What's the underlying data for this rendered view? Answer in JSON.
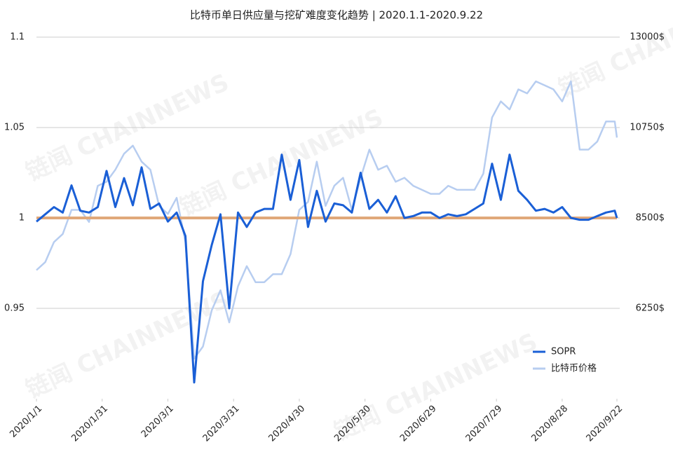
{
  "chart_data": {
    "type": "line",
    "title": "比特币单日供应量与挖矿难度变化趋势 | 2020.1.1-2020.9.22",
    "watermark": "链闻 CHAINNEWS",
    "x": [
      "2020/1/1",
      "2020/1/5",
      "2020/1/9",
      "2020/1/13",
      "2020/1/17",
      "2020/1/21",
      "2020/1/25",
      "2020/1/29",
      "2020/2/2",
      "2020/2/6",
      "2020/2/10",
      "2020/2/14",
      "2020/2/18",
      "2020/2/22",
      "2020/2/26",
      "2020/3/1",
      "2020/3/5",
      "2020/3/9",
      "2020/3/13",
      "2020/3/17",
      "2020/3/21",
      "2020/3/25",
      "2020/3/29",
      "2020/4/2",
      "2020/4/6",
      "2020/4/10",
      "2020/4/14",
      "2020/4/18",
      "2020/4/22",
      "2020/4/26",
      "2020/4/30",
      "2020/5/4",
      "2020/5/8",
      "2020/5/12",
      "2020/5/16",
      "2020/5/20",
      "2020/5/24",
      "2020/5/28",
      "2020/6/1",
      "2020/6/5",
      "2020/6/9",
      "2020/6/13",
      "2020/6/17",
      "2020/6/21",
      "2020/6/25",
      "2020/6/29",
      "2020/7/3",
      "2020/7/7",
      "2020/7/11",
      "2020/7/15",
      "2020/7/19",
      "2020/7/23",
      "2020/7/27",
      "2020/7/31",
      "2020/8/4",
      "2020/8/8",
      "2020/8/12",
      "2020/8/16",
      "2020/8/20",
      "2020/8/24",
      "2020/8/28",
      "2020/9/1",
      "2020/9/5",
      "2020/9/9",
      "2020/9/13",
      "2020/9/17",
      "2020/9/21",
      "2020/9/22"
    ],
    "xlim": [
      "2020/1/1",
      "2020/9/22"
    ],
    "xticks": [
      "2020/1/1",
      "2020/1/31",
      "2020/3/1",
      "2020/3/31",
      "2020/4/30",
      "2020/5/30",
      "2020/6/29",
      "2020/7/29",
      "2020/8/28",
      "2020/9/22"
    ],
    "ylim": [
      0.9,
      1.1
    ],
    "yticks": [
      0.95,
      1,
      1.05,
      1.1
    ],
    "y2lim": [
      4000,
      13000
    ],
    "y2ticks": [
      {
        "value": 6250,
        "label": "6250$"
      },
      {
        "value": 8500,
        "label": "8500$"
      },
      {
        "value": 10750,
        "label": "10750$"
      },
      {
        "value": 13000,
        "label": "13000$"
      }
    ],
    "grid": true,
    "reference_line": {
      "value": 1,
      "color": "#e0a87a"
    },
    "legend": "lower right",
    "series": [
      {
        "name": "SOPR",
        "color": "#1a5fd6",
        "values": [
          0.998,
          1.002,
          1.006,
          1.003,
          1.018,
          1.004,
          1.003,
          1.006,
          1.026,
          1.006,
          1.022,
          1.007,
          1.028,
          1.005,
          1.008,
          0.998,
          1.003,
          0.99,
          0.909,
          0.965,
          0.985,
          1.002,
          0.95,
          1.003,
          0.995,
          1.003,
          1.005,
          1.005,
          1.035,
          1.01,
          1.032,
          0.995,
          1.015,
          0.998,
          1.008,
          1.007,
          1.003,
          1.025,
          1.005,
          1.01,
          1.003,
          1.012,
          1.0,
          1.001,
          1.003,
          1.003,
          1.0,
          1.002,
          1.001,
          1.002,
          1.005,
          1.008,
          1.03,
          1.01,
          1.035,
          1.015,
          1.01,
          1.004,
          1.005,
          1.003,
          1.006,
          1.0,
          0.999,
          0.999,
          1.001,
          1.003,
          1.004,
          1.0
        ]
      },
      {
        "name": "比特币价格",
        "color": "#b7cdf0",
        "axis": "y2",
        "values": [
          7200,
          7400,
          7900,
          8100,
          8700,
          8700,
          8400,
          9300,
          9400,
          9700,
          10100,
          10300,
          9900,
          9700,
          8800,
          8600,
          9000,
          7900,
          5000,
          5300,
          6200,
          6700,
          5900,
          6800,
          7300,
          6900,
          6900,
          7100,
          7100,
          7600,
          8700,
          8900,
          9900,
          8800,
          9300,
          9500,
          8700,
          9500,
          10200,
          9700,
          9800,
          9400,
          9500,
          9300,
          9200,
          9100,
          9100,
          9300,
          9200,
          9200,
          9200,
          9600,
          11000,
          11400,
          11200,
          11700,
          11600,
          11900,
          11800,
          11700,
          11400,
          11900,
          10200,
          10200,
          10400,
          10900,
          10900,
          10500
        ]
      }
    ]
  }
}
